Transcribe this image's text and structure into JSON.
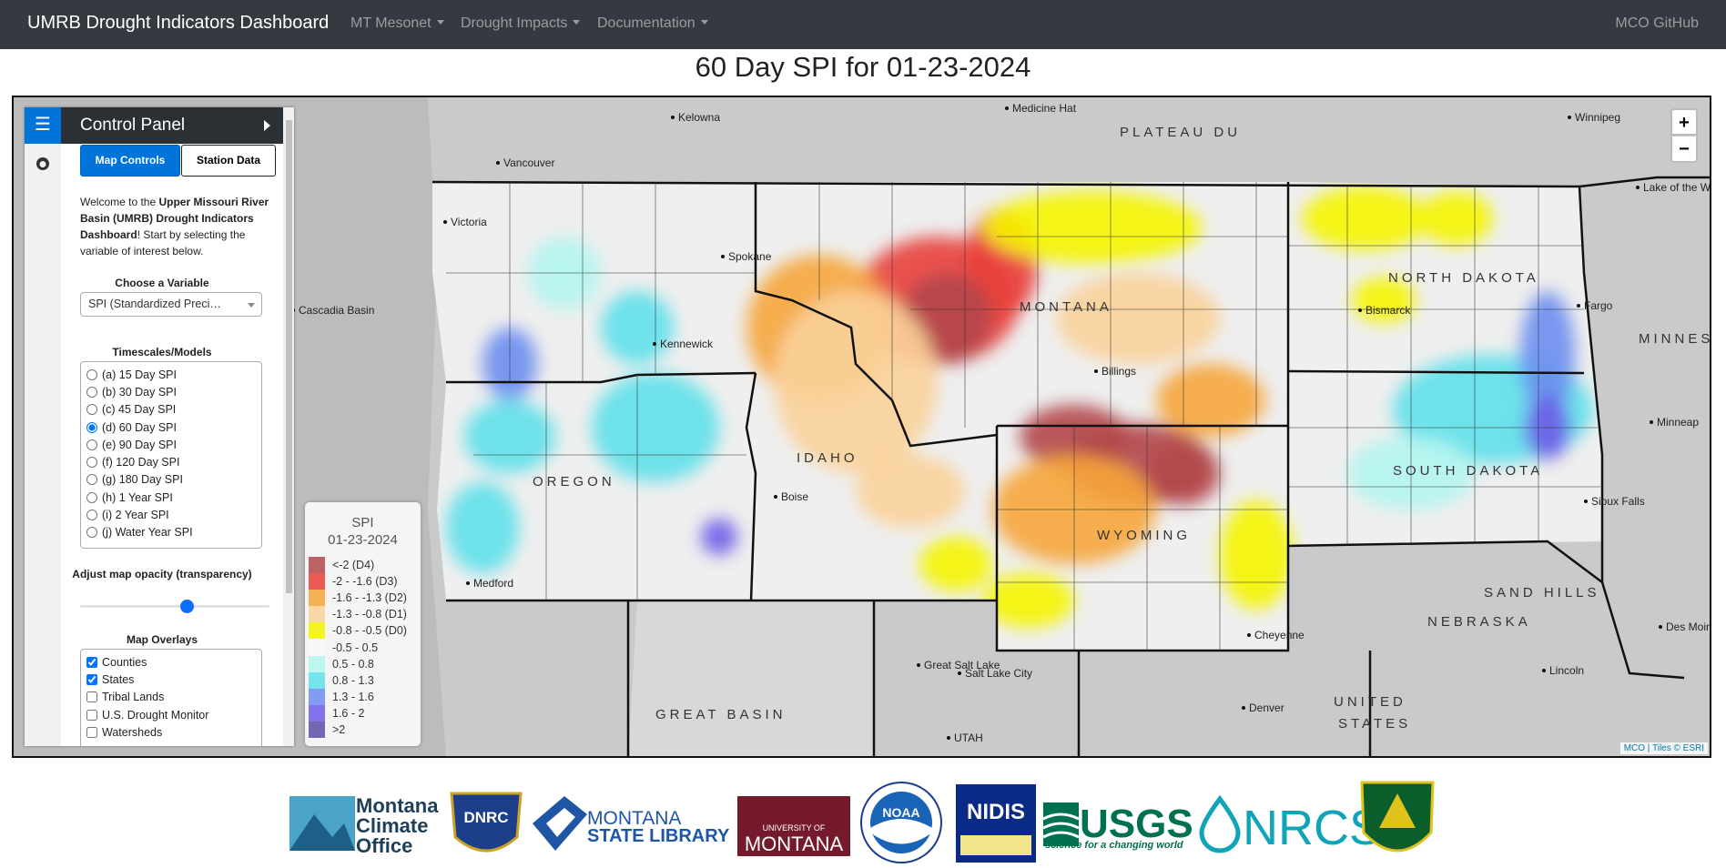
{
  "navbar": {
    "brand": "UMRB Drought Indicators Dashboard",
    "menus": [
      "MT Mesonet",
      "Drought Impacts",
      "Documentation"
    ],
    "right": "MCO GitHub"
  },
  "title": "60 Day SPI for 01-23-2024",
  "control_panel": {
    "title": "Control Panel",
    "tabs": [
      "Map Controls",
      "Station Data"
    ],
    "welcome": {
      "pre": "Welcome to the ",
      "bold": "Upper Missouri River Basin (UMRB) Drought Indicators Dashboard",
      "post": "! Start by selecting the variable of interest below."
    },
    "variable_label": "Choose a Variable",
    "variable_selected": "SPI (Standardized Preci…",
    "timescales_label": "Timescales/Models",
    "timescales": [
      "(a) 15 Day SPI",
      "(b) 30 Day SPI",
      "(c) 45 Day SPI",
      "(d) 60 Day SPI",
      "(e) 90 Day SPI",
      "(f) 120 Day SPI",
      "(g) 180 Day SPI",
      "(h) 1 Year SPI",
      "(i) 2 Year SPI",
      "(j) Water Year SPI"
    ],
    "timescale_selected": 3,
    "opacity_label": "Adjust map opacity (transparency)",
    "overlays_label": "Map Overlays",
    "overlays": [
      {
        "name": "Counties",
        "checked": true
      },
      {
        "name": "States",
        "checked": true
      },
      {
        "name": "Tribal Lands",
        "checked": false
      },
      {
        "name": "U.S. Drought Monitor",
        "checked": false
      },
      {
        "name": "Watersheds",
        "checked": false
      }
    ]
  },
  "legend": {
    "title": "SPI",
    "date": "01-23-2024",
    "items": [
      {
        "label": "<-2 (D4)",
        "color": "#b2474a"
      },
      {
        "label": "-2 - -1.6 (D3)",
        "color": "#e8403a"
      },
      {
        "label": "-1.6 - -1.3 (D2)",
        "color": "#f6a53a"
      },
      {
        "label": "-1.3 - -0.8 (D1)",
        "color": "#f9d29a"
      },
      {
        "label": "-0.8 - -0.5 (D0)",
        "color": "#f5f500"
      },
      {
        "label": "-0.5 - 0.5",
        "color": "#f7f7f7"
      },
      {
        "label": "0.5 - 0.8",
        "color": "#b3f5f0"
      },
      {
        "label": "0.8 - 1.3",
        "color": "#5ee0ea"
      },
      {
        "label": "1.3 - 1.6",
        "color": "#6b8df0"
      },
      {
        "label": "1.6 - 2",
        "color": "#6d5ce8"
      },
      {
        "label": ">2",
        "color": "#5a4fa6"
      }
    ]
  },
  "map": {
    "zoom_in": "+",
    "zoom_out": "−",
    "attribution": "MCO | Tiles © ESRI",
    "labels": [
      "Kelowna",
      "Medicine Hat",
      "Winnipeg",
      "Vancouver",
      "Victoria",
      "Cascadia Basin",
      "PLATEAU DU",
      "MONTANA",
      "NORTH DAKOTA",
      "Bismarck",
      "Fargo",
      "MINNES",
      "Minneap",
      "Billings",
      "IDAHO",
      "OREGON",
      "WYOMING",
      "SOUTH DAKOTA",
      "Sioux Falls",
      "NEBRASKA",
      "SAND HILLS",
      "Des Moin",
      "Lincoln",
      "Denver",
      "Cheyenne",
      "Salt Lake City",
      "Great Salt Lake",
      "UTAH",
      "GREAT BASIN",
      "UNITED",
      "STATES",
      "Spokane",
      "Kennewick",
      "Boise",
      "Medford",
      "Lake of the Woods"
    ]
  },
  "logos": {
    "mco": [
      "Montana",
      "Climate",
      "Office"
    ],
    "dnrc": "DNRC",
    "msl": [
      "MONTANA",
      "STATE LIBRARY"
    ],
    "um": [
      "UNIVERSITY OF",
      "MONTANA"
    ],
    "noaa": "NOAA",
    "nidis": "NIDIS",
    "usgs": [
      "USGS",
      "science for a changing world"
    ],
    "nrcs": "NRCS"
  }
}
